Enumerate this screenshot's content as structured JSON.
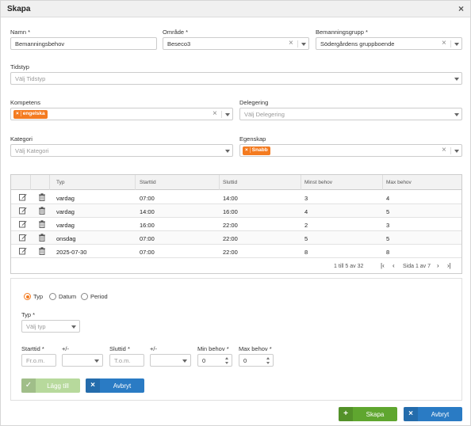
{
  "dialog": {
    "title": "Skapa"
  },
  "form": {
    "namn": {
      "label": "Namn",
      "value": "Bemanningsbehov"
    },
    "omrade": {
      "label": "Område",
      "value": "Beseco3"
    },
    "bemanningsgrupp": {
      "label": "Bemanningsgrupp",
      "value": "Södergårdens gruppboende"
    },
    "tidstyp": {
      "label": "Tidstyp",
      "placeholder": "Välj Tidstyp"
    },
    "kompetens": {
      "label": "Kompetens",
      "tag": "engelska"
    },
    "delegering": {
      "label": "Delegering",
      "placeholder": "Välj Delegering"
    },
    "kategori": {
      "label": "Kategori",
      "placeholder": "Välj Kategori"
    },
    "egenskap": {
      "label": "Egenskap",
      "tag": "Snabb"
    }
  },
  "grid": {
    "columns": [
      "Typ",
      "Starttid",
      "Sluttid",
      "Minst behov",
      "Max behov"
    ],
    "rows": [
      {
        "typ": "vardag",
        "start": "07:00",
        "slut": "14:00",
        "minst": "3",
        "max": "4"
      },
      {
        "typ": "vardag",
        "start": "14:00",
        "slut": "16:00",
        "minst": "4",
        "max": "5"
      },
      {
        "typ": "vardag",
        "start": "16:00",
        "slut": "22:00",
        "minst": "2",
        "max": "3"
      },
      {
        "typ": "onsdag",
        "start": "07:00",
        "slut": "22:00",
        "minst": "5",
        "max": "5"
      },
      {
        "typ": "2025-07-30",
        "start": "07:00",
        "slut": "22:00",
        "minst": "8",
        "max": "8"
      }
    ],
    "range_text": "1 till 5 av 32",
    "page_text": "Sida 1 av 7"
  },
  "panel": {
    "radios": [
      "Typ",
      "Datum",
      "Period"
    ],
    "typ_label": "Typ",
    "typ_placeholder": "Välj typ",
    "starttid_label": "Starttid",
    "starttid_placeholder": "Fr.o.m.",
    "pm1_label": "+/-",
    "sluttid_label": "Sluttid",
    "sluttid_placeholder": "T.o.m.",
    "pm2_label": "+/-",
    "min_label": "Min behov",
    "min_value": "0",
    "max_label": "Max behov",
    "max_value": "0",
    "add_label": "Lägg till",
    "cancel_label": "Avbryt"
  },
  "footer": {
    "create_label": "Skapa",
    "cancel_label": "Avbryt"
  },
  "colors": {
    "accent": "#f47b20",
    "green": "#5fa62f",
    "blue": "#2a7bc4"
  }
}
